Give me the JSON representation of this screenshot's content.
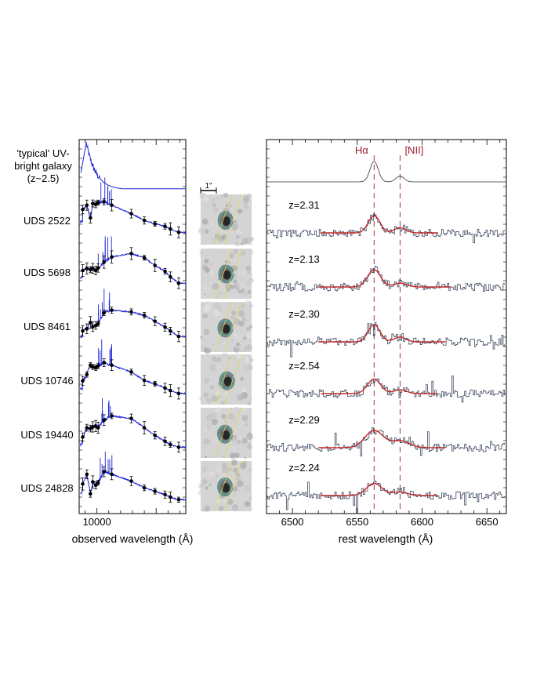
{
  "chart_data": [
    {
      "type": "line",
      "panel": "sed",
      "xlabel": "observed wavelength (Å)",
      "x_tick_labels": [
        "10000"
      ],
      "xlim": [
        7000,
        25000
      ],
      "template_label": "'typical' UV-bright galaxy (z~2.5)",
      "template_label_lines": [
        "'typical' UV-",
        "bright galaxy",
        "(z~2.5)"
      ],
      "galaxies": [
        "UDS 2522",
        "UDS 5698",
        "UDS 8461",
        "UDS 10746",
        "UDS 19440",
        "UDS 24828"
      ],
      "photometry_wavelengths": [
        7600,
        8300,
        8900,
        9300,
        9800,
        10200,
        11200,
        12500,
        15800,
        18000,
        19800,
        21500,
        22400,
        23800
      ],
      "series": [
        {
          "galaxy": "UDS 2522",
          "flux": [
            0.72,
            0.82,
            0.52,
            0.86,
            0.84,
            0.88,
            0.9,
            0.82,
            0.62,
            0.46,
            0.38,
            0.32,
            0.26,
            0.18
          ]
        },
        {
          "galaxy": "UDS 5698",
          "flux": [
            0.5,
            0.55,
            0.52,
            0.55,
            0.5,
            0.56,
            0.7,
            0.82,
            0.9,
            0.8,
            0.62,
            0.48,
            0.35,
            0.2
          ]
        },
        {
          "galaxy": "UDS 8461",
          "flux": [
            0.35,
            0.4,
            0.55,
            0.45,
            0.48,
            0.52,
            0.78,
            0.84,
            0.8,
            0.72,
            0.58,
            0.44,
            0.35,
            0.22
          ]
        },
        {
          "galaxy": "UDS 10746",
          "flux": [
            0.45,
            0.6,
            0.82,
            0.78,
            0.76,
            0.8,
            0.88,
            0.82,
            0.66,
            0.46,
            0.38,
            0.28,
            0.22,
            0.15
          ]
        },
        {
          "galaxy": "UDS 19440",
          "flux": [
            0.4,
            0.62,
            0.6,
            0.64,
            0.66,
            0.62,
            0.8,
            0.9,
            0.84,
            0.62,
            0.44,
            0.3,
            0.22,
            0.16
          ]
        },
        {
          "galaxy": "UDS 24828",
          "flux": [
            0.55,
            0.78,
            0.32,
            0.6,
            0.52,
            0.58,
            0.84,
            0.78,
            0.62,
            0.46,
            0.38,
            0.3,
            0.24,
            0.18
          ]
        }
      ]
    },
    {
      "type": "image",
      "panel": "images",
      "scale_bar_label": "1\"",
      "cutouts": 6
    },
    {
      "type": "line",
      "panel": "spectra",
      "xlabel": "rest wavelength (Å)",
      "xlim": [
        6480,
        6665
      ],
      "x_ticks": [
        6500,
        6550,
        6600,
        6650
      ],
      "line_labels": [
        {
          "text": "Hα",
          "wavelength": 6563,
          "color": "#9e1b2a"
        },
        {
          "text": "[NII]",
          "wavelength": 6583,
          "color": "#9e1b2a"
        }
      ],
      "fit_color": "#c22a2a",
      "spectrum_color": "#25324a",
      "redshifts": [
        "z=2.31",
        "z=2.13",
        "z=2.30",
        "z=2.54",
        "z=2.29",
        "z=2.24"
      ],
      "fits": [
        {
          "redshift": "z=2.31",
          "range": [
            6522,
            6612
          ],
          "ha_amp": 1.0,
          "nii_amp": 0.3,
          "width": 4.5
        },
        {
          "redshift": "z=2.13",
          "range": [
            6520,
            6622
          ],
          "ha_amp": 1.0,
          "nii_amp": 0.22,
          "width": 5.0
        },
        {
          "redshift": "z=2.30",
          "range": [
            6520,
            6618
          ],
          "ha_amp": 1.0,
          "nii_amp": 0.28,
          "width": 4.5
        },
        {
          "redshift": "z=2.54",
          "range": [
            6522,
            6612
          ],
          "ha_amp": 0.85,
          "nii_amp": 0.22,
          "width": 5.0
        },
        {
          "redshift": "z=2.29",
          "range": [
            6520,
            6618
          ],
          "ha_amp": 1.0,
          "nii_amp": 0.4,
          "width": 7.0
        },
        {
          "redshift": "z=2.24",
          "range": [
            6522,
            6612
          ],
          "ha_amp": 0.7,
          "nii_amp": 0.2,
          "width": 6.0
        }
      ]
    }
  ]
}
